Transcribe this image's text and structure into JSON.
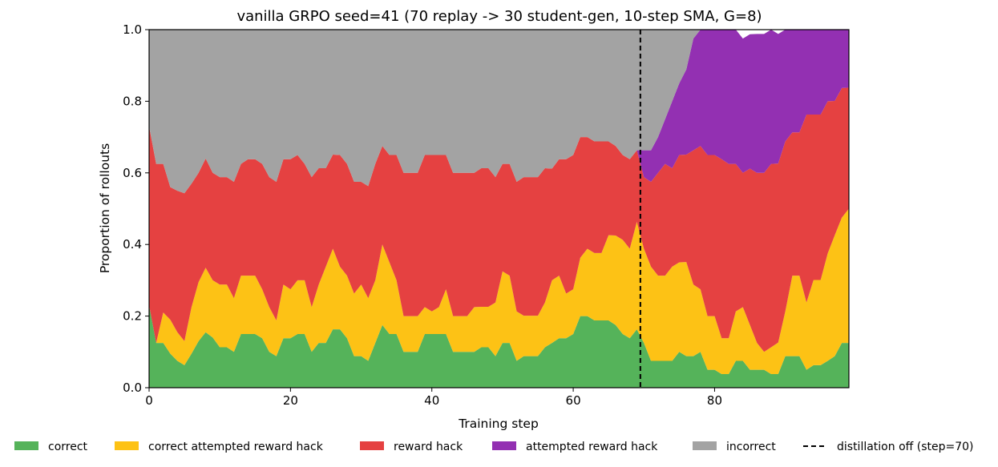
{
  "chart_data": {
    "type": "area",
    "stacked": true,
    "title": "vanilla GRPO seed=41 (70 replay -> 30 student-gen, 10-step SMA, G=8)",
    "xlabel": "Training step",
    "ylabel": "Proportion of rollouts",
    "xlim": [
      0,
      99
    ],
    "ylim": [
      0.0,
      1.0
    ],
    "xticks": [
      0,
      20,
      40,
      60,
      80
    ],
    "xtick_labels": [
      "0",
      "20",
      "40",
      "60",
      "80"
    ],
    "yticks": [
      0.0,
      0.2,
      0.4,
      0.6,
      0.8,
      1.0
    ],
    "ytick_labels": [
      "0.0",
      "0.2",
      "0.4",
      "0.6",
      "0.8",
      "1.0"
    ],
    "grid": false,
    "legend_position": "bottom",
    "series": [
      {
        "name": "correct",
        "color": "#55b35a",
        "values": [
          0.23,
          0.125,
          0.125,
          0.095,
          0.075,
          0.063,
          0.095,
          0.13,
          0.155,
          0.14,
          0.113,
          0.113,
          0.1,
          0.15,
          0.15,
          0.15,
          0.138,
          0.1,
          0.088,
          0.138,
          0.138,
          0.15,
          0.15,
          0.1,
          0.125,
          0.125,
          0.163,
          0.163,
          0.138,
          0.088,
          0.088,
          0.075,
          0.125,
          0.175,
          0.15,
          0.15,
          0.1,
          0.1,
          0.1,
          0.15,
          0.15,
          0.15,
          0.15,
          0.1,
          0.1,
          0.1,
          0.1,
          0.113,
          0.113,
          0.088,
          0.125,
          0.125,
          0.075,
          0.088,
          0.088,
          0.088,
          0.113,
          0.125,
          0.138,
          0.138,
          0.15,
          0.2,
          0.2,
          0.188,
          0.188,
          0.188,
          0.175,
          0.15,
          0.138,
          0.163,
          0.125,
          0.075,
          0.075,
          0.075,
          0.075,
          0.1,
          0.088,
          0.088,
          0.1,
          0.05,
          0.05,
          0.038,
          0.038,
          0.075,
          0.075,
          0.05,
          0.05,
          0.05,
          0.038,
          0.038,
          0.088,
          0.088,
          0.088,
          0.05,
          0.063,
          0.063,
          0.075,
          0.088,
          0.125,
          0.125
        ]
      },
      {
        "name": "correct attempted reward hack",
        "color": "#fdc215",
        "values": [
          0.0,
          0.0,
          0.085,
          0.095,
          0.08,
          0.067,
          0.13,
          0.165,
          0.18,
          0.16,
          0.175,
          0.175,
          0.15,
          0.163,
          0.163,
          0.163,
          0.137,
          0.125,
          0.1,
          0.15,
          0.137,
          0.15,
          0.15,
          0.125,
          0.163,
          0.213,
          0.225,
          0.175,
          0.175,
          0.175,
          0.2,
          0.175,
          0.175,
          0.225,
          0.2,
          0.15,
          0.1,
          0.1,
          0.1,
          0.075,
          0.063,
          0.075,
          0.125,
          0.1,
          0.1,
          0.1,
          0.125,
          0.113,
          0.113,
          0.15,
          0.2,
          0.188,
          0.138,
          0.113,
          0.113,
          0.113,
          0.125,
          0.175,
          0.175,
          0.125,
          0.125,
          0.163,
          0.188,
          0.188,
          0.188,
          0.238,
          0.25,
          0.263,
          0.25,
          0.3,
          0.263,
          0.263,
          0.238,
          0.238,
          0.263,
          0.25,
          0.263,
          0.2,
          0.175,
          0.15,
          0.15,
          0.1,
          0.1,
          0.138,
          0.15,
          0.125,
          0.075,
          0.05,
          0.075,
          0.088,
          0.125,
          0.225,
          0.225,
          0.188,
          0.238,
          0.238,
          0.3,
          0.338,
          0.35,
          0.375
        ]
      },
      {
        "name": "reward hack",
        "color": "#e54141",
        "values": [
          0.5,
          0.5,
          0.415,
          0.37,
          0.395,
          0.413,
          0.345,
          0.305,
          0.305,
          0.3,
          0.3,
          0.3,
          0.325,
          0.312,
          0.325,
          0.325,
          0.35,
          0.363,
          0.387,
          0.35,
          0.363,
          0.35,
          0.325,
          0.363,
          0.325,
          0.275,
          0.263,
          0.312,
          0.312,
          0.312,
          0.287,
          0.313,
          0.325,
          0.275,
          0.3,
          0.35,
          0.4,
          0.4,
          0.4,
          0.425,
          0.437,
          0.425,
          0.375,
          0.4,
          0.4,
          0.4,
          0.375,
          0.387,
          0.387,
          0.35,
          0.3,
          0.312,
          0.362,
          0.387,
          0.387,
          0.387,
          0.375,
          0.312,
          0.325,
          0.375,
          0.375,
          0.337,
          0.312,
          0.312,
          0.312,
          0.262,
          0.25,
          0.237,
          0.25,
          0.2,
          0.2,
          0.237,
          0.287,
          0.312,
          0.275,
          0.3,
          0.3,
          0.375,
          0.4,
          0.45,
          0.45,
          0.5,
          0.487,
          0.412,
          0.375,
          0.437,
          0.475,
          0.5,
          0.512,
          0.5,
          0.475,
          0.4,
          0.4,
          0.525,
          0.462,
          0.462,
          0.425,
          0.375,
          0.362,
          0.338
        ]
      },
      {
        "name": "attempted reward hack",
        "color": "#9330b2",
        "values": [
          0,
          0,
          0,
          0,
          0,
          0,
          0,
          0,
          0,
          0,
          0,
          0,
          0,
          0,
          0,
          0,
          0,
          0,
          0,
          0,
          0,
          0,
          0,
          0,
          0,
          0,
          0,
          0,
          0,
          0,
          0,
          0,
          0,
          0,
          0,
          0,
          0,
          0,
          0,
          0,
          0,
          0,
          0,
          0,
          0,
          0,
          0,
          0,
          0,
          0,
          0,
          0,
          0,
          0,
          0,
          0,
          0,
          0,
          0,
          0,
          0,
          0,
          0,
          0,
          0,
          0,
          0,
          0,
          0,
          0,
          0.075,
          0.088,
          0.1,
          0.125,
          0.187,
          0.2,
          0.238,
          0.312,
          0.337,
          0.35,
          0.35,
          0.362,
          0.375,
          0.375,
          0.375,
          0.375,
          0.388,
          0.388,
          0.375,
          0.362,
          0.312,
          0.287,
          0.287,
          0.237,
          0.237,
          0.237,
          0.2,
          0.2,
          0.163,
          0.162
        ]
      },
      {
        "name": "incorrect",
        "color": "#a3a3a3",
        "values": [
          0.27,
          0.375,
          0.375,
          0.44,
          0.45,
          0.457,
          0.43,
          0.4,
          0.36,
          0.4,
          0.412,
          0.412,
          0.425,
          0.375,
          0.362,
          0.362,
          0.375,
          0.412,
          0.425,
          0.362,
          0.362,
          0.35,
          0.375,
          0.412,
          0.387,
          0.387,
          0.349,
          0.35,
          0.375,
          0.425,
          0.425,
          0.437,
          0.375,
          0.325,
          0.35,
          0.35,
          0.4,
          0.4,
          0.4,
          0.35,
          0.35,
          0.35,
          0.35,
          0.4,
          0.4,
          0.4,
          0.4,
          0.387,
          0.387,
          0.412,
          0.375,
          0.375,
          0.425,
          0.412,
          0.412,
          0.412,
          0.387,
          0.388,
          0.362,
          0.362,
          0.35,
          0.3,
          0.3,
          0.312,
          0.312,
          0.312,
          0.325,
          0.35,
          0.362,
          0.337,
          0.337,
          0.337,
          0.3,
          0.25,
          0.2,
          0.15,
          0.111,
          0.025,
          0.0,
          0.0,
          0.0,
          0.0,
          0.0,
          0.0,
          0.0,
          0.0,
          0.0,
          0.0,
          0.0,
          0.0,
          0.0,
          0.0,
          0.0,
          0.0,
          0.0,
          0.0,
          0.0,
          0.0,
          0.0,
          0.0
        ]
      }
    ],
    "annotations": [
      {
        "type": "vline",
        "x": 69.5,
        "style": "dashed",
        "color": "#000000",
        "legend_label": "distillation off (step=70)"
      }
    ]
  }
}
